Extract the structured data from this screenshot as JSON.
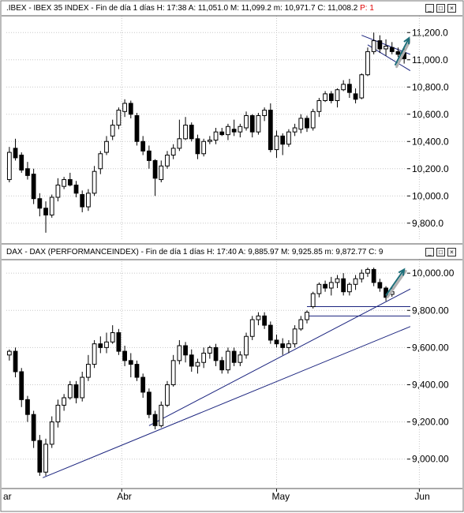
{
  "panels": [
    {
      "header": {
        "symbol": ".IBEX - IBEX 35 INDEX - Fin de día 1 días",
        "time": "H: 17:38",
        "open": "A: 11,051.0",
        "high": "M: 11,099.2",
        "low": "m: 10,971.7",
        "close": "C: 11,008.2",
        "extra": "P: 1"
      }
    },
    {
      "header": {
        "symbol": "DAX - DAX (PERFORMANCEINDEX) - Fin de día 1 días",
        "time": "H: 17:40",
        "open": "A: 9,885.97",
        "high": "M: 9,925.85",
        "low": "m: 9,872.77",
        "close": "C: 9"
      }
    }
  ],
  "x_axis_labels": [
    "ar",
    "Abr",
    "May",
    "Jun"
  ],
  "chart_data": [
    {
      "type": "candlestick",
      "title": ".IBEX - IBEX 35 INDEX",
      "ylim": [
        9700,
        11300
      ],
      "yticks": [
        9800,
        10000,
        10200,
        10400,
        10600,
        10800,
        11000,
        11200
      ],
      "ytick_labels": [
        "9,800.0",
        "10,000.0",
        "10,200.0",
        "10,400.0",
        "10,600.0",
        "10,800.0",
        "11,000.0",
        "11,200.0"
      ],
      "candles": [
        {
          "o": 10120,
          "h": 10360,
          "l": 10100,
          "c": 10320
        },
        {
          "o": 10350,
          "h": 10420,
          "l": 10260,
          "c": 10280
        },
        {
          "o": 10300,
          "h": 10320,
          "l": 10170,
          "c": 10190
        },
        {
          "o": 10200,
          "h": 10250,
          "l": 10120,
          "c": 10150
        },
        {
          "o": 10160,
          "h": 10200,
          "l": 9940,
          "c": 9980
        },
        {
          "o": 9980,
          "h": 10020,
          "l": 9850,
          "c": 9910
        },
        {
          "o": 9910,
          "h": 9960,
          "l": 9730,
          "c": 9860
        },
        {
          "o": 9860,
          "h": 10010,
          "l": 9840,
          "c": 9990
        },
        {
          "o": 9990,
          "h": 10130,
          "l": 9960,
          "c": 10080
        },
        {
          "o": 10070,
          "h": 10140,
          "l": 10050,
          "c": 10120
        },
        {
          "o": 10120,
          "h": 10170,
          "l": 10070,
          "c": 10080
        },
        {
          "o": 10080,
          "h": 10110,
          "l": 9990,
          "c": 10020
        },
        {
          "o": 10010,
          "h": 10040,
          "l": 9880,
          "c": 9920
        },
        {
          "o": 9920,
          "h": 10050,
          "l": 9890,
          "c": 10020
        },
        {
          "o": 10020,
          "h": 10220,
          "l": 10000,
          "c": 10180
        },
        {
          "o": 10200,
          "h": 10330,
          "l": 10160,
          "c": 10310
        },
        {
          "o": 10320,
          "h": 10440,
          "l": 10300,
          "c": 10400
        },
        {
          "o": 10440,
          "h": 10560,
          "l": 10410,
          "c": 10520
        },
        {
          "o": 10520,
          "h": 10650,
          "l": 10490,
          "c": 10630
        },
        {
          "o": 10620,
          "h": 10710,
          "l": 10580,
          "c": 10680
        },
        {
          "o": 10680,
          "h": 10700,
          "l": 10570,
          "c": 10600
        },
        {
          "o": 10590,
          "h": 10610,
          "l": 10370,
          "c": 10400
        },
        {
          "o": 10400,
          "h": 10440,
          "l": 10300,
          "c": 10330
        },
        {
          "o": 10330,
          "h": 10370,
          "l": 10200,
          "c": 10260
        },
        {
          "o": 10260,
          "h": 10270,
          "l": 10000,
          "c": 10130
        },
        {
          "o": 10120,
          "h": 10260,
          "l": 10100,
          "c": 10220
        },
        {
          "o": 10220,
          "h": 10330,
          "l": 10200,
          "c": 10300
        },
        {
          "o": 10300,
          "h": 10380,
          "l": 10270,
          "c": 10350
        },
        {
          "o": 10350,
          "h": 10560,
          "l": 10330,
          "c": 10420
        },
        {
          "o": 10420,
          "h": 10580,
          "l": 10410,
          "c": 10520
        },
        {
          "o": 10520,
          "h": 10540,
          "l": 10400,
          "c": 10420
        },
        {
          "o": 10420,
          "h": 10450,
          "l": 10270,
          "c": 10310
        },
        {
          "o": 10310,
          "h": 10420,
          "l": 10290,
          "c": 10400
        },
        {
          "o": 10400,
          "h": 10440,
          "l": 10380,
          "c": 10410
        },
        {
          "o": 10410,
          "h": 10500,
          "l": 10380,
          "c": 10470
        },
        {
          "o": 10470,
          "h": 10500,
          "l": 10440,
          "c": 10450
        },
        {
          "o": 10450,
          "h": 10530,
          "l": 10410,
          "c": 10510
        },
        {
          "o": 10490,
          "h": 10560,
          "l": 10440,
          "c": 10470
        },
        {
          "o": 10470,
          "h": 10530,
          "l": 10430,
          "c": 10510
        },
        {
          "o": 10500,
          "h": 10620,
          "l": 10480,
          "c": 10590
        },
        {
          "o": 10590,
          "h": 10600,
          "l": 10430,
          "c": 10470
        },
        {
          "o": 10470,
          "h": 10610,
          "l": 10450,
          "c": 10590
        },
        {
          "o": 10590,
          "h": 10650,
          "l": 10550,
          "c": 10630
        },
        {
          "o": 10630,
          "h": 10680,
          "l": 10320,
          "c": 10340
        },
        {
          "o": 10340,
          "h": 10480,
          "l": 10280,
          "c": 10440
        },
        {
          "o": 10440,
          "h": 10460,
          "l": 10300,
          "c": 10380
        },
        {
          "o": 10380,
          "h": 10490,
          "l": 10360,
          "c": 10470
        },
        {
          "o": 10470,
          "h": 10530,
          "l": 10440,
          "c": 10500
        },
        {
          "o": 10490,
          "h": 10600,
          "l": 10460,
          "c": 10570
        },
        {
          "o": 10570,
          "h": 10590,
          "l": 10470,
          "c": 10500
        },
        {
          "o": 10500,
          "h": 10640,
          "l": 10480,
          "c": 10620
        },
        {
          "o": 10620,
          "h": 10720,
          "l": 10580,
          "c": 10700
        },
        {
          "o": 10700,
          "h": 10770,
          "l": 10690,
          "c": 10750
        },
        {
          "o": 10750,
          "h": 10770,
          "l": 10680,
          "c": 10700
        },
        {
          "o": 10700,
          "h": 10790,
          "l": 10650,
          "c": 10780
        },
        {
          "o": 10780,
          "h": 10850,
          "l": 10770,
          "c": 10820
        },
        {
          "o": 10820,
          "h": 10860,
          "l": 10720,
          "c": 10760
        },
        {
          "o": 10750,
          "h": 10790,
          "l": 10680,
          "c": 10710
        },
        {
          "o": 10720,
          "h": 10900,
          "l": 10710,
          "c": 10890
        },
        {
          "o": 10890,
          "h": 11090,
          "l": 10880,
          "c": 11060
        },
        {
          "o": 11060,
          "h": 11200,
          "l": 11040,
          "c": 11140
        },
        {
          "o": 11140,
          "h": 11180,
          "l": 11050,
          "c": 11080
        },
        {
          "o": 11080,
          "h": 11150,
          "l": 11030,
          "c": 11100
        },
        {
          "o": 11090,
          "h": 11130,
          "l": 11040,
          "c": 11060
        },
        {
          "o": 11060,
          "h": 11090,
          "l": 11020,
          "c": 11040
        },
        {
          "o": 11051,
          "h": 11099,
          "l": 10972,
          "c": 11008
        }
      ],
      "trend_lines": [
        {
          "x1": 58,
          "y1": 11180,
          "x2": 66,
          "y2": 11040
        },
        {
          "x1": 59,
          "y1": 11110,
          "x2": 66,
          "y2": 10920
        }
      ],
      "arrow": {
        "x1": 63.5,
        "y1": 10960,
        "x2": 65.8,
        "y2": 11160
      }
    },
    {
      "type": "candlestick",
      "title": "DAX - DAX (PERFORMANCEINDEX)",
      "ylim": [
        8880,
        10060
      ],
      "yticks": [
        9000,
        9200,
        9400,
        9600,
        9800,
        10000
      ],
      "ytick_labels": [
        "9,000.00",
        "9,200.00",
        "9,400.00",
        "9,600.00",
        "9,800.00",
        "10,000.00"
      ],
      "candles": [
        {
          "o": 9560,
          "h": 9590,
          "l": 9530,
          "c": 9580
        },
        {
          "o": 9580,
          "h": 9600,
          "l": 9440,
          "c": 9470
        },
        {
          "o": 9470,
          "h": 9490,
          "l": 9280,
          "c": 9320
        },
        {
          "o": 9320,
          "h": 9340,
          "l": 9200,
          "c": 9240
        },
        {
          "o": 9240,
          "h": 9260,
          "l": 9060,
          "c": 9100
        },
        {
          "o": 9100,
          "h": 9130,
          "l": 8910,
          "c": 8930
        },
        {
          "o": 8930,
          "h": 9110,
          "l": 8910,
          "c": 9080
        },
        {
          "o": 9080,
          "h": 9230,
          "l": 9060,
          "c": 9200
        },
        {
          "o": 9200,
          "h": 9320,
          "l": 9170,
          "c": 9290
        },
        {
          "o": 9290,
          "h": 9350,
          "l": 9260,
          "c": 9330
        },
        {
          "o": 9330,
          "h": 9420,
          "l": 9320,
          "c": 9400
        },
        {
          "o": 9400,
          "h": 9420,
          "l": 9300,
          "c": 9330
        },
        {
          "o": 9330,
          "h": 9470,
          "l": 9310,
          "c": 9440
        },
        {
          "o": 9440,
          "h": 9560,
          "l": 9420,
          "c": 9510
        },
        {
          "o": 9510,
          "h": 9640,
          "l": 9490,
          "c": 9620
        },
        {
          "o": 9620,
          "h": 9660,
          "l": 9570,
          "c": 9600
        },
        {
          "o": 9600,
          "h": 9680,
          "l": 9570,
          "c": 9630
        },
        {
          "o": 9630,
          "h": 9720,
          "l": 9620,
          "c": 9680
        },
        {
          "o": 9680,
          "h": 9700,
          "l": 9560,
          "c": 9580
        },
        {
          "o": 9580,
          "h": 9610,
          "l": 9500,
          "c": 9530
        },
        {
          "o": 9530,
          "h": 9570,
          "l": 9440,
          "c": 9510
        },
        {
          "o": 9510,
          "h": 9530,
          "l": 9420,
          "c": 9440
        },
        {
          "o": 9440,
          "h": 9460,
          "l": 9330,
          "c": 9360
        },
        {
          "o": 9360,
          "h": 9380,
          "l": 9220,
          "c": 9240
        },
        {
          "o": 9240,
          "h": 9260,
          "l": 9160,
          "c": 9180
        },
        {
          "o": 9180,
          "h": 9310,
          "l": 9170,
          "c": 9290
        },
        {
          "o": 9290,
          "h": 9420,
          "l": 9280,
          "c": 9400
        },
        {
          "o": 9400,
          "h": 9560,
          "l": 9390,
          "c": 9530
        },
        {
          "o": 9530,
          "h": 9640,
          "l": 9510,
          "c": 9610
        },
        {
          "o": 9610,
          "h": 9630,
          "l": 9520,
          "c": 9560
        },
        {
          "o": 9560,
          "h": 9590,
          "l": 9470,
          "c": 9500
        },
        {
          "o": 9500,
          "h": 9540,
          "l": 9460,
          "c": 9520
        },
        {
          "o": 9520,
          "h": 9600,
          "l": 9490,
          "c": 9570
        },
        {
          "o": 9570,
          "h": 9610,
          "l": 9540,
          "c": 9600
        },
        {
          "o": 9600,
          "h": 9620,
          "l": 9500,
          "c": 9530
        },
        {
          "o": 9530,
          "h": 9550,
          "l": 9460,
          "c": 9480
        },
        {
          "o": 9480,
          "h": 9600,
          "l": 9460,
          "c": 9580
        },
        {
          "o": 9580,
          "h": 9600,
          "l": 9500,
          "c": 9520
        },
        {
          "o": 9520,
          "h": 9580,
          "l": 9500,
          "c": 9560
        },
        {
          "o": 9560,
          "h": 9680,
          "l": 9540,
          "c": 9660
        },
        {
          "o": 9660,
          "h": 9770,
          "l": 9640,
          "c": 9750
        },
        {
          "o": 9750,
          "h": 9790,
          "l": 9720,
          "c": 9770
        },
        {
          "o": 9770,
          "h": 9790,
          "l": 9700,
          "c": 9720
        },
        {
          "o": 9720,
          "h": 9740,
          "l": 9620,
          "c": 9640
        },
        {
          "o": 9640,
          "h": 9670,
          "l": 9600,
          "c": 9620
        },
        {
          "o": 9620,
          "h": 9650,
          "l": 9560,
          "c": 9600
        },
        {
          "o": 9600,
          "h": 9640,
          "l": 9570,
          "c": 9620
        },
        {
          "o": 9620,
          "h": 9720,
          "l": 9600,
          "c": 9700
        },
        {
          "o": 9700,
          "h": 9770,
          "l": 9690,
          "c": 9750
        },
        {
          "o": 9750,
          "h": 9800,
          "l": 9730,
          "c": 9790
        },
        {
          "o": 9820,
          "h": 9900,
          "l": 9810,
          "c": 9890
        },
        {
          "o": 9890,
          "h": 9950,
          "l": 9870,
          "c": 9940
        },
        {
          "o": 9940,
          "h": 9960,
          "l": 9900,
          "c": 9920
        },
        {
          "o": 9920,
          "h": 9980,
          "l": 9880,
          "c": 9950
        },
        {
          "o": 9950,
          "h": 9990,
          "l": 9920,
          "c": 9970
        },
        {
          "o": 9970,
          "h": 10000,
          "l": 9880,
          "c": 9900
        },
        {
          "o": 9900,
          "h": 9950,
          "l": 9880,
          "c": 9940
        },
        {
          "o": 9940,
          "h": 9990,
          "l": 9910,
          "c": 9970
        },
        {
          "o": 9970,
          "h": 10020,
          "l": 9950,
          "c": 10000
        },
        {
          "o": 10000,
          "h": 10030,
          "l": 9980,
          "c": 10020
        },
        {
          "o": 10020,
          "h": 10030,
          "l": 9930,
          "c": 9950
        },
        {
          "o": 9950,
          "h": 9970,
          "l": 9900,
          "c": 9920
        },
        {
          "o": 9920,
          "h": 9930,
          "l": 9850,
          "c": 9870
        },
        {
          "o": 9886,
          "h": 9926,
          "l": 9873,
          "c": 9900
        }
      ],
      "trend_lines": [
        {
          "x1": 5.5,
          "y1": 8900,
          "x2": 71,
          "y2": 9780
        },
        {
          "x1": 23,
          "y1": 9180,
          "x2": 71,
          "y2": 10000
        },
        {
          "x1": 49,
          "y1": 9820,
          "x2": 68,
          "y2": 9820
        },
        {
          "x1": 49,
          "y1": 9770,
          "x2": 68,
          "y2": 9770
        }
      ],
      "arrow": {
        "x1": 62,
        "y1": 9880,
        "x2": 65,
        "y2": 10020
      }
    }
  ]
}
